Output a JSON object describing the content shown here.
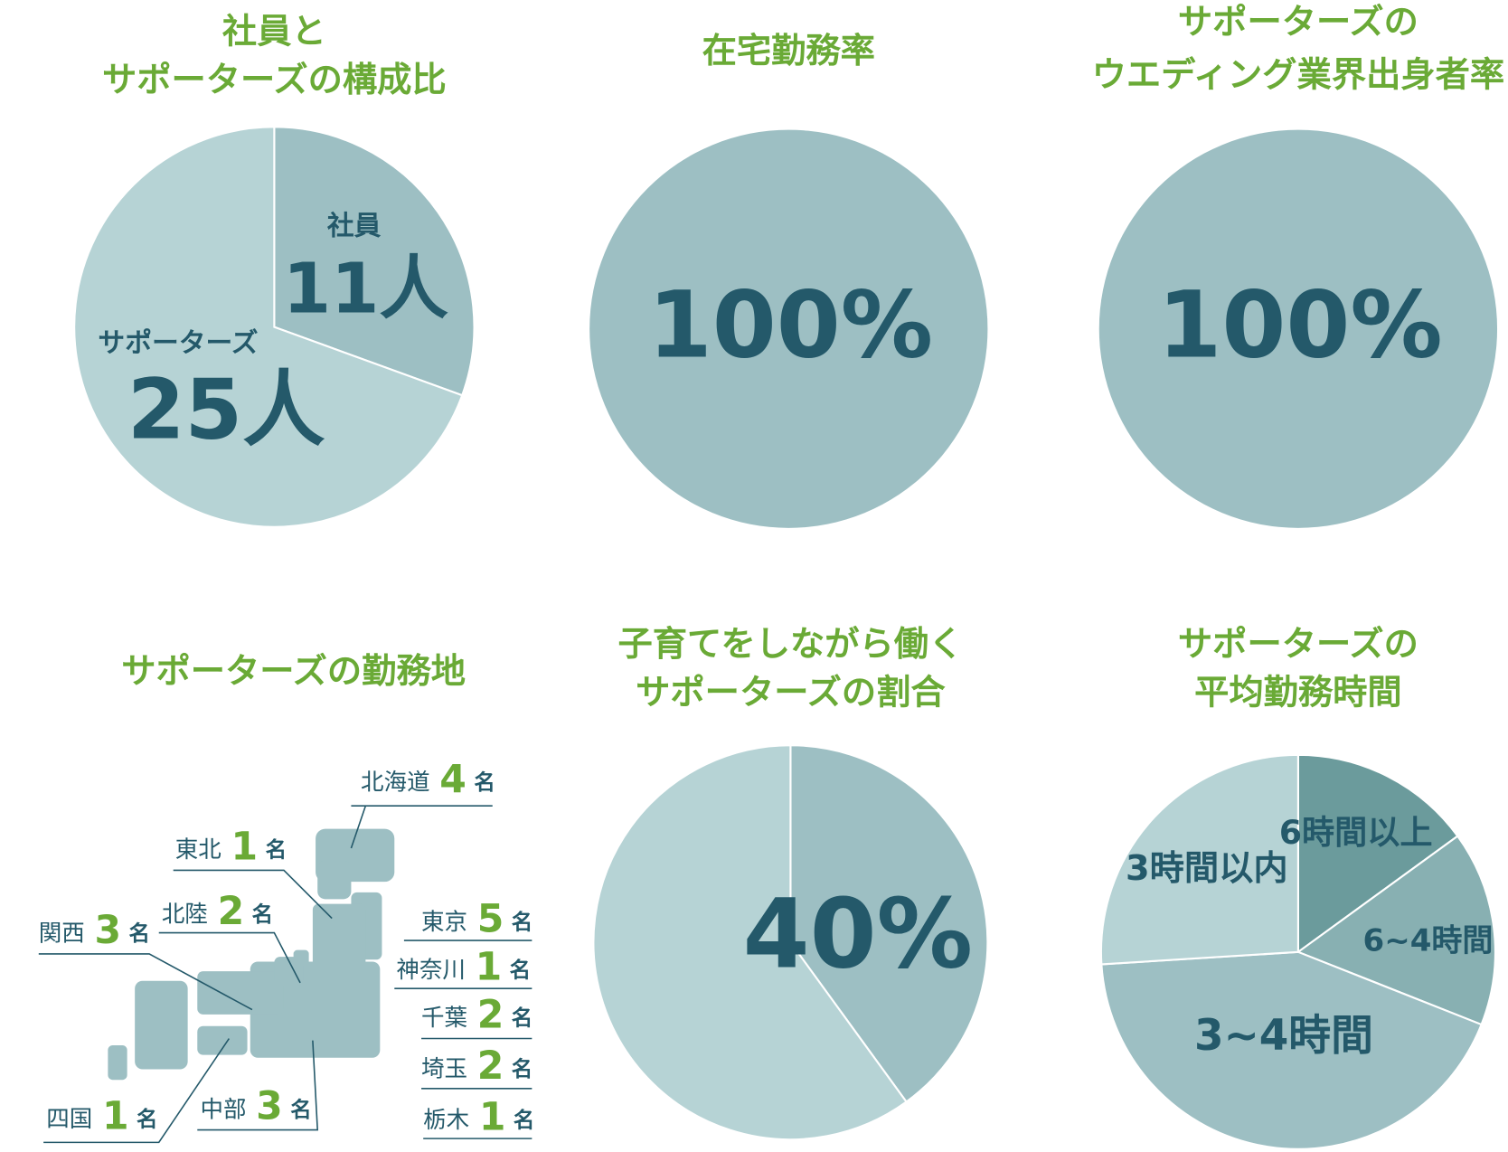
{
  "chart_data": [
    {
      "type": "pie",
      "title": [
        "社員と",
        "サポーターズの構成比"
      ],
      "categories": [
        "社員",
        "サポーターズ"
      ],
      "values": [
        11,
        25
      ],
      "value_labels": [
        "11人",
        "25人"
      ],
      "colors": [
        "#9dbfc3",
        "#b6d3d5"
      ]
    },
    {
      "type": "pie",
      "title": [
        "在宅勤務率"
      ],
      "values": [
        100
      ],
      "value_labels": [
        "100%"
      ],
      "colors": [
        "#9dbfc3"
      ]
    },
    {
      "type": "pie",
      "title": [
        "サポーターズの",
        "ウエディング業界出身者率"
      ],
      "values": [
        100
      ],
      "value_labels": [
        "100%"
      ],
      "colors": [
        "#9dbfc3"
      ]
    },
    {
      "type": "pie",
      "title": [
        "子育てをしながら働く",
        "サポーターズの割合"
      ],
      "values": [
        40,
        60
      ],
      "value_labels": [
        "40%",
        null
      ],
      "colors": [
        "#9dbfc3",
        "#b6d3d5"
      ]
    },
    {
      "type": "pie",
      "title": [
        "サポーターズの",
        "平均勤務時間"
      ],
      "categories": [
        "6時間以上",
        "6~4時間",
        "3~4時間",
        "3時間以内"
      ],
      "values": [
        15,
        16,
        43,
        26
      ],
      "colors": [
        "#6b9b9c",
        "#88b0b2",
        "#9dbfc3",
        "#b6d3d5"
      ]
    }
  ],
  "map": {
    "title": "サポーターズの勤務地",
    "unit": "名",
    "regions": [
      {
        "name": "北海道",
        "count": 4
      },
      {
        "name": "東北",
        "count": 1
      },
      {
        "name": "北陸",
        "count": 2
      },
      {
        "name": "関西",
        "count": 3
      },
      {
        "name": "東京",
        "count": 5
      },
      {
        "name": "神奈川",
        "count": 1
      },
      {
        "name": "千葉",
        "count": 2
      },
      {
        "name": "埼玉",
        "count": 2
      },
      {
        "name": "栃木",
        "count": 1
      },
      {
        "name": "四国",
        "count": 1
      },
      {
        "name": "中部",
        "count": 3
      }
    ]
  }
}
